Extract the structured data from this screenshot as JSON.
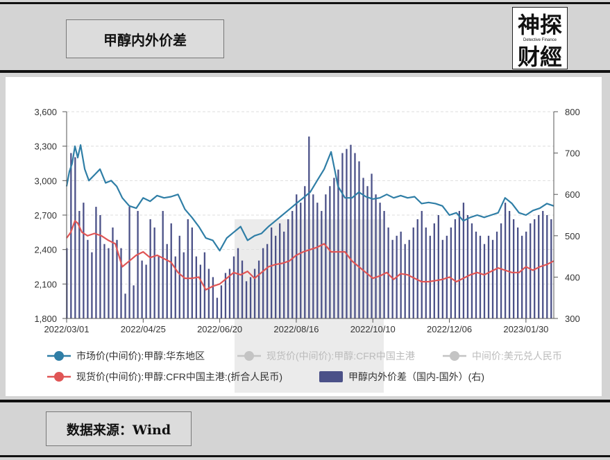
{
  "header": {
    "title": "甲醇内外价差"
  },
  "logo": {
    "top_text": "神探",
    "bottom_text": "财經",
    "tagline": "Detective Finance"
  },
  "footer": {
    "source": "数据来源：Wind"
  },
  "colors": {
    "bars": "#4b5188",
    "market_line": "#2f7ea6",
    "spot_line": "#e05555",
    "grey_legend": "#c4c4c4"
  },
  "chart_data": {
    "type": "bar+line",
    "title": "",
    "xlabel": "",
    "ylabel": "",
    "x_ticks": [
      "2022/03/01",
      "2022/04/25",
      "2022/06/20",
      "2022/08/16",
      "2022/10/10",
      "2022/12/06",
      "2023/01/30"
    ],
    "y_left": {
      "min": 1800,
      "max": 3600,
      "ticks": [
        "1,800",
        "2,100",
        "2,400",
        "2,700",
        "3,000",
        "3,300",
        "3,600"
      ]
    },
    "y_right": {
      "min": 300,
      "max": 800,
      "ticks": [
        "300",
        "400",
        "500",
        "600",
        "700",
        "800"
      ]
    },
    "grid": true,
    "legend_position": "bottom",
    "legend": [
      {
        "name": "市场价(中间价):甲醇:华东地区",
        "color": "#2f7ea6",
        "marker": "line-dot"
      },
      {
        "name": "现货价(中间价):甲醇:CFR中国主港",
        "color": "#c4c4c4",
        "marker": "line-dot"
      },
      {
        "name": "中间价:美元兑人民币",
        "color": "#c4c4c4",
        "marker": "line-dot"
      },
      {
        "name": "现货价(中间价):甲醇:CFR中国主港:(折合人民币)",
        "color": "#e05555",
        "marker": "line-dot"
      },
      {
        "name": "甲醇内外价差（国内-国外）(右)",
        "color": "#4b5188",
        "marker": "bar"
      }
    ],
    "series": [
      {
        "name": "市场价(中间价):甲醇:华东地区",
        "axis": "left",
        "x": [
          0,
          2,
          4,
          6,
          8,
          10,
          13,
          16,
          20,
          24,
          28,
          32,
          36,
          40,
          45,
          50,
          55,
          60,
          65,
          70,
          75,
          80,
          85,
          90,
          95,
          100,
          105,
          110,
          115,
          120,
          125,
          130,
          135,
          140,
          145,
          150,
          155,
          160,
          165,
          170,
          175,
          180,
          185,
          190,
          195,
          200,
          205,
          210,
          215,
          220,
          225,
          230,
          235,
          240,
          245,
          250,
          255,
          260,
          265,
          270,
          275,
          280,
          285,
          290,
          295,
          300,
          305,
          310,
          315,
          320,
          325,
          330,
          335,
          340,
          345,
          350
        ],
        "values": [
          2950,
          3080,
          3150,
          3300,
          3200,
          3310,
          3100,
          3000,
          3050,
          3100,
          2980,
          3000,
          2950,
          2850,
          2780,
          2760,
          2850,
          2820,
          2870,
          2850,
          2860,
          2880,
          2750,
          2680,
          2600,
          2500,
          2480,
          2390,
          2500,
          2550,
          2600,
          2480,
          2520,
          2540,
          2600,
          2650,
          2700,
          2750,
          2800,
          2850,
          2900,
          3000,
          3100,
          3250,
          2950,
          2850,
          2850,
          2900,
          2860,
          2840,
          2850,
          2880,
          2850,
          2870,
          2850,
          2860,
          2800,
          2810,
          2800,
          2780,
          2700,
          2720,
          2650,
          2680,
          2700,
          2680,
          2700,
          2720,
          2850,
          2800,
          2720,
          2700,
          2740,
          2760,
          2800,
          2780
        ]
      },
      {
        "name": "现货价(中间价):甲醇:CFR中国主港:(折合人民币)",
        "axis": "left",
        "x": [
          0,
          3,
          6,
          8,
          11,
          15,
          20,
          25,
          30,
          35,
          40,
          45,
          50,
          55,
          60,
          65,
          70,
          75,
          80,
          85,
          90,
          95,
          100,
          105,
          110,
          115,
          120,
          125,
          130,
          135,
          140,
          145,
          150,
          155,
          160,
          165,
          170,
          175,
          180,
          185,
          190,
          195,
          200,
          205,
          210,
          215,
          220,
          225,
          230,
          235,
          240,
          245,
          250,
          255,
          260,
          265,
          270,
          275,
          280,
          285,
          290,
          295,
          300,
          305,
          310,
          315,
          320,
          325,
          330,
          335,
          340,
          345,
          350
        ],
        "values": [
          2500,
          2550,
          2650,
          2630,
          2550,
          2520,
          2540,
          2520,
          2480,
          2450,
          2250,
          2300,
          2350,
          2380,
          2330,
          2350,
          2320,
          2290,
          2200,
          2150,
          2150,
          2160,
          2050,
          2080,
          2100,
          2150,
          2200,
          2180,
          2210,
          2150,
          2200,
          2250,
          2270,
          2280,
          2300,
          2350,
          2380,
          2400,
          2420,
          2450,
          2380,
          2380,
          2380,
          2300,
          2250,
          2200,
          2150,
          2170,
          2200,
          2140,
          2190,
          2180,
          2150,
          2120,
          2120,
          2130,
          2140,
          2160,
          2120,
          2150,
          2180,
          2200,
          2180,
          2210,
          2240,
          2220,
          2200,
          2200,
          2250,
          2220,
          2250,
          2270,
          2300
        ]
      },
      {
        "name": "甲醇内外价差（国内-国外）(右)",
        "axis": "right",
        "type": "bar",
        "x": [
          0,
          3,
          6,
          9,
          12,
          15,
          18,
          21,
          24,
          27,
          30,
          33,
          36,
          39,
          42,
          45,
          48,
          51,
          54,
          57,
          60,
          63,
          66,
          69,
          72,
          75,
          78,
          81,
          84,
          87,
          90,
          93,
          96,
          99,
          102,
          105,
          108,
          111,
          114,
          117,
          120,
          123,
          126,
          129,
          132,
          135,
          138,
          141,
          144,
          147,
          150,
          153,
          156,
          159,
          162,
          165,
          168,
          171,
          174,
          177,
          180,
          183,
          186,
          189,
          192,
          195,
          198,
          201,
          204,
          207,
          210,
          213,
          216,
          219,
          222,
          225,
          228,
          231,
          234,
          237,
          240,
          243,
          246,
          249,
          252,
          255,
          258,
          261,
          264,
          267,
          270,
          273,
          276,
          279,
          282,
          285,
          288,
          291,
          294,
          297,
          300,
          303,
          306,
          309,
          312,
          315,
          318,
          321,
          324,
          327,
          330,
          333,
          336,
          339,
          342,
          345,
          348
        ],
        "values": [
          470,
          700,
          690,
          560,
          580,
          490,
          460,
          570,
          550,
          480,
          470,
          520,
          490,
          470,
          360,
          570,
          380,
          560,
          440,
          430,
          540,
          520,
          450,
          560,
          480,
          530,
          450,
          500,
          460,
          540,
          520,
          450,
          430,
          460,
          420,
          400,
          350,
          380,
          410,
          420,
          450,
          470,
          440,
          390,
          400,
          420,
          440,
          470,
          480,
          520,
          500,
          530,
          510,
          540,
          560,
          600,
          580,
          620,
          740,
          600,
          580,
          560,
          600,
          620,
          640,
          660,
          700,
          710,
          720,
          700,
          680,
          640,
          620,
          650,
          600,
          580,
          560,
          520,
          490,
          500,
          510,
          480,
          490,
          520,
          540,
          560,
          520,
          500,
          530,
          550,
          490,
          500,
          520,
          540,
          560,
          580,
          550,
          530,
          510,
          500,
          480,
          500,
          490,
          510,
          530,
          580,
          560,
          540,
          520,
          500,
          510,
          530,
          540,
          550,
          560,
          550,
          540
        ]
      }
    ]
  }
}
